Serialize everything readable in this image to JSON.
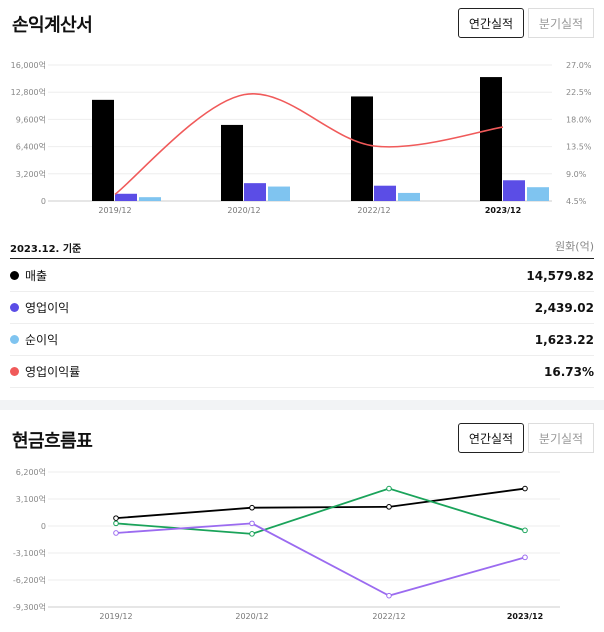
{
  "income": {
    "title": "손익계산서",
    "tabs": [
      "연간실적",
      "분기실적"
    ],
    "basis": "2023.12. 기준",
    "unit": "원화(억)",
    "items": [
      {
        "label": "매출",
        "value": "14,579.82",
        "color": "#000000"
      },
      {
        "label": "영업이익",
        "value": "2,439.02",
        "color": "#5b4de6"
      },
      {
        "label": "순이익",
        "value": "1,623.22",
        "color": "#7fc4f0"
      },
      {
        "label": "영업이익률",
        "value": "16.73%",
        "color": "#f05a5a"
      }
    ]
  },
  "cashflow": {
    "title": "현금흐름표",
    "tabs": [
      "연간실적",
      "분기실적"
    ]
  },
  "chart_data": [
    {
      "type": "bar",
      "categories": [
        "2019/12",
        "2020/12",
        "2022/12",
        "2023/12"
      ],
      "series": [
        {
          "name": "매출",
          "values": [
            11900,
            8950,
            12300,
            14579.82
          ],
          "color": "#000000"
        },
        {
          "name": "영업이익",
          "values": [
            850,
            2100,
            1800,
            2439.02
          ],
          "color": "#5b4de6"
        },
        {
          "name": "순이익",
          "values": [
            450,
            1700,
            950,
            1623.22
          ],
          "color": "#7fc4f0"
        },
        {
          "name": "영업이익률",
          "axis": "right",
          "type": "line",
          "values": [
            5.6,
            22.1,
            13.6,
            16.73
          ],
          "color": "#f05a5a"
        }
      ],
      "yticks_left": [
        "16,000억",
        "12,800억",
        "9,600억",
        "6,400억",
        "3,200억",
        "0"
      ],
      "ylim_left": [
        0,
        16000
      ],
      "yticks_right": [
        "27.0%",
        "22.5%",
        "18.0%",
        "13.5%",
        "9.0%",
        "4.5%"
      ],
      "ylim_right": [
        4.5,
        27.0
      ],
      "highlight_category": "2023/12"
    },
    {
      "type": "line",
      "categories": [
        "2019/12",
        "2020/12",
        "2022/12",
        "2023/12"
      ],
      "series": [
        {
          "values": [
            900,
            2100,
            2200,
            4300
          ],
          "color": "#000000"
        },
        {
          "values": [
            300,
            -900,
            4300,
            -500
          ],
          "color": "#1aa35a"
        },
        {
          "values": [
            -800,
            300,
            -8000,
            -3600
          ],
          "color": "#9b6bf0"
        }
      ],
      "yticks": [
        "6,200억",
        "3,100억",
        "0",
        "-3,100억",
        "-6,200억",
        "-9,300억"
      ],
      "ylim": [
        -9300,
        6200
      ],
      "highlight_category": "2023/12"
    }
  ]
}
